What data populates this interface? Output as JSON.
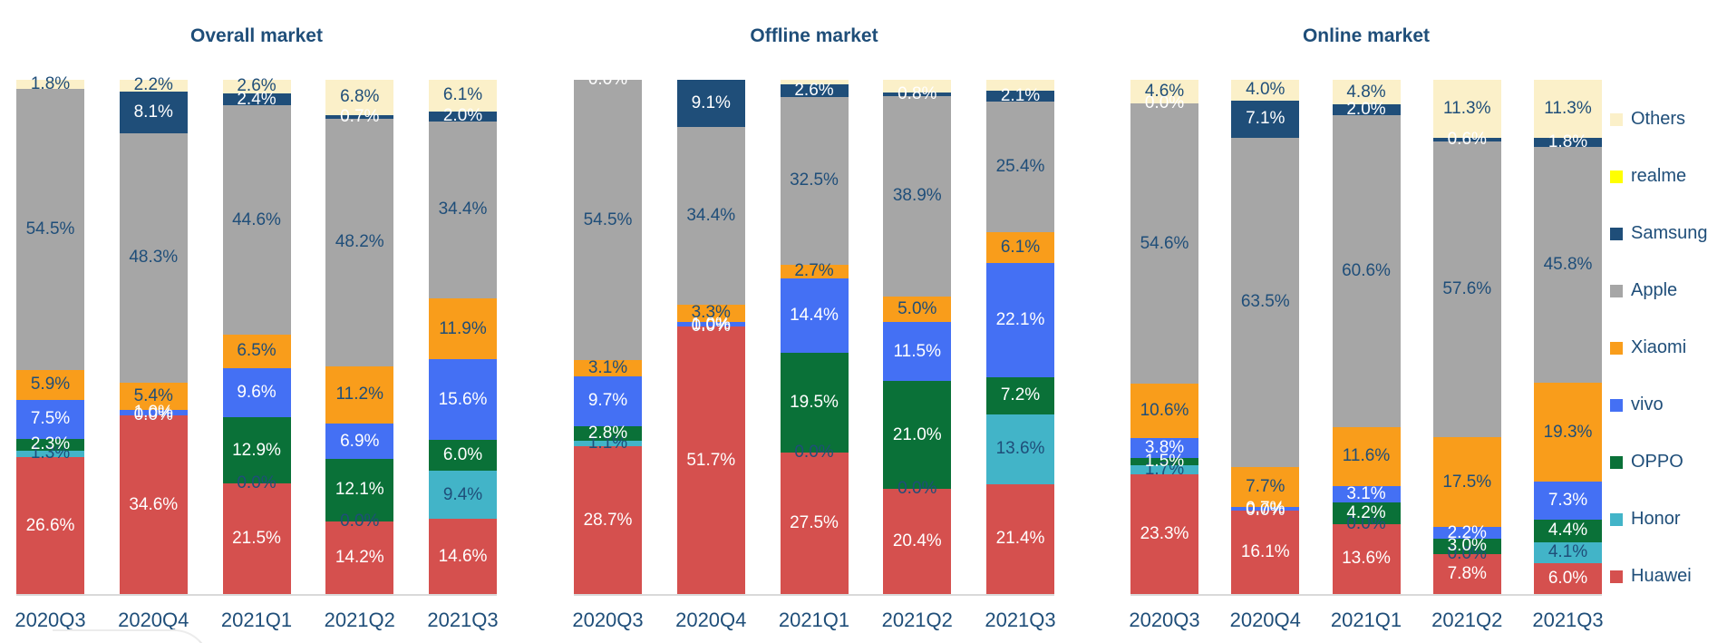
{
  "page": {
    "background": "#ffffff"
  },
  "legend": {
    "position": "right",
    "items": [
      {
        "label": "Others",
        "color": "#FBF0C9"
      },
      {
        "label": "realme",
        "color": "#FFFF00"
      },
      {
        "label": "Samsung",
        "color": "#1F4E79"
      },
      {
        "label": "Apple",
        "color": "#A6A6A6"
      },
      {
        "label": "Xiaomi",
        "color": "#F99D1B"
      },
      {
        "label": "vivo",
        "color": "#4470F4"
      },
      {
        "label": "OPPO",
        "color": "#0A7138"
      },
      {
        "label": "Honor",
        "color": "#42B4C8"
      },
      {
        "label": "Huawei",
        "color": "#D5504E"
      }
    ]
  },
  "chart_data": {
    "type": "bar",
    "subtype": "100-percent-stacked-column",
    "grid": false,
    "ylim": [
      0,
      100
    ],
    "legend_position": "right",
    "categories": [
      "2020Q3",
      "2020Q4",
      "2021Q1",
      "2021Q2",
      "2021Q3"
    ],
    "series_order_bottom_to_top": [
      "Huawei",
      "Honor",
      "OPPO",
      "vivo",
      "Xiaomi",
      "Apple",
      "Samsung",
      "realme",
      "Others"
    ],
    "series_colors": {
      "Huawei": "#D5504E",
      "Honor": "#42B4C8",
      "OPPO": "#0A7138",
      "vivo": "#4470F4",
      "Xiaomi": "#F99D1B",
      "Apple": "#A6A6A6",
      "Samsung": "#1F4E79",
      "realme": "#FFFF00",
      "Others": "#FBF0C9"
    },
    "label_text_colors": {
      "Huawei": "#FFFFFF",
      "Honor": "#1F4E79",
      "OPPO": "#FFFFFF",
      "vivo": "#FFFFFF",
      "Xiaomi": "#1F4E79",
      "Apple": "#1F4E79",
      "Samsung": "#FFFFFF",
      "realme": null,
      "Others": "#1F4E79"
    },
    "charts": [
      {
        "title": "Overall market",
        "series": [
          {
            "name": "Huawei",
            "values": [
              26.6,
              34.6,
              21.5,
              14.2,
              14.6
            ],
            "labels": [
              "26.6%",
              "34.6%",
              "21.5%",
              "14.2%",
              "14.6%"
            ]
          },
          {
            "name": "Honor",
            "values": [
              1.3,
              0.0,
              0.0,
              0.0,
              9.4
            ],
            "labels": [
              "1.3%",
              "0.0%",
              "0.0%",
              "0.0%",
              "9.4%"
            ]
          },
          {
            "name": "OPPO",
            "values": [
              2.3,
              0.0,
              12.9,
              12.1,
              6.0
            ],
            "labels": [
              "2.3%",
              "0.0%",
              "12.9%",
              "12.1%",
              "6.0%"
            ]
          },
          {
            "name": "vivo",
            "values": [
              7.5,
              1.0,
              9.6,
              6.9,
              15.6
            ],
            "labels": [
              "7.5%",
              "1.0%",
              "9.6%",
              "6.9%",
              "15.6%"
            ]
          },
          {
            "name": "Xiaomi",
            "values": [
              5.9,
              5.4,
              6.5,
              11.2,
              11.9
            ],
            "labels": [
              "5.9%",
              "5.4%",
              "6.5%",
              "11.2%",
              "11.9%"
            ]
          },
          {
            "name": "Apple",
            "values": [
              54.5,
              48.3,
              44.6,
              48.2,
              34.4
            ],
            "labels": [
              "54.5%",
              "48.3%",
              "44.6%",
              "48.2%",
              "34.4%"
            ]
          },
          {
            "name": "Samsung",
            "values": [
              0.0,
              8.1,
              2.4,
              0.7,
              2.0
            ],
            "labels": [
              null,
              "8.1%",
              "2.4%",
              "0.7%",
              "2.0%"
            ]
          },
          {
            "name": "realme",
            "values": [
              0.0,
              0.0,
              0.0,
              0.0,
              0.0
            ],
            "labels": [
              null,
              null,
              null,
              null,
              null
            ]
          },
          {
            "name": "Others",
            "values": [
              1.8,
              2.2,
              2.6,
              6.8,
              6.1
            ],
            "labels": [
              "1.8%",
              "2.2%",
              "2.6%",
              "6.8%",
              "6.1%"
            ]
          }
        ]
      },
      {
        "title": "Offline market",
        "series": [
          {
            "name": "Huawei",
            "values": [
              28.7,
              51.7,
              27.5,
              20.4,
              21.4
            ],
            "labels": [
              "28.7%",
              "51.7%",
              "27.5%",
              "20.4%",
              "21.4%"
            ]
          },
          {
            "name": "Honor",
            "values": [
              1.1,
              0.0,
              0.0,
              0.0,
              13.6
            ],
            "labels": [
              "1.1%",
              "0.0%",
              "0.0%",
              "0.0%",
              "13.6%"
            ]
          },
          {
            "name": "OPPO",
            "values": [
              2.8,
              0.0,
              19.5,
              21.0,
              7.2
            ],
            "labels": [
              "2.8%",
              "0.0%",
              "19.5%",
              "21.0%",
              "7.2%"
            ]
          },
          {
            "name": "vivo",
            "values": [
              9.7,
              1.0,
              14.4,
              11.5,
              22.1
            ],
            "labels": [
              "9.7%",
              "1.0%",
              "14.4%",
              "11.5%",
              "22.1%"
            ]
          },
          {
            "name": "Xiaomi",
            "values": [
              3.1,
              3.3,
              2.7,
              5.0,
              6.1
            ],
            "labels": [
              "3.1%",
              "3.3%",
              "2.7%",
              "5.0%",
              "6.1%"
            ]
          },
          {
            "name": "Apple",
            "values": [
              54.5,
              34.4,
              32.5,
              38.9,
              25.4
            ],
            "labels": [
              "54.5%",
              "34.4%",
              "32.5%",
              "38.9%",
              "25.4%"
            ]
          },
          {
            "name": "Samsung",
            "values": [
              0.0,
              9.1,
              2.6,
              0.8,
              2.1
            ],
            "labels": [
              "0.0%",
              "9.1%",
              "2.6%",
              "0.8%",
              "2.1%"
            ]
          },
          {
            "name": "realme",
            "values": [
              0.0,
              0.0,
              0.0,
              0.0,
              0.0
            ],
            "labels": [
              null,
              null,
              null,
              null,
              null
            ]
          },
          {
            "name": "Others",
            "values": [
              0.0,
              0.0,
              0.8,
              2.4,
              2.1
            ],
            "labels": [
              null,
              null,
              null,
              null,
              null
            ]
          }
        ]
      },
      {
        "title": "Online market",
        "series": [
          {
            "name": "Huawei",
            "values": [
              23.3,
              16.1,
              13.6,
              7.8,
              6.0
            ],
            "labels": [
              "23.3%",
              "16.1%",
              "13.6%",
              "7.8%",
              "6.0%"
            ]
          },
          {
            "name": "Honor",
            "values": [
              1.7,
              0.0,
              0.0,
              0.0,
              4.1
            ],
            "labels": [
              "1.7%",
              "0.0%",
              "0.0%",
              "0.0%",
              "4.1%"
            ]
          },
          {
            "name": "OPPO",
            "values": [
              1.5,
              0.0,
              4.2,
              3.0,
              4.4
            ],
            "labels": [
              "1.5%",
              "0.0%",
              "4.2%",
              "3.0%",
              "4.4%"
            ]
          },
          {
            "name": "vivo",
            "values": [
              3.8,
              0.7,
              3.1,
              2.2,
              7.3
            ],
            "labels": [
              "3.8%",
              "0.7%",
              "3.1%",
              "2.2%",
              "7.3%"
            ]
          },
          {
            "name": "Xiaomi",
            "values": [
              10.6,
              7.7,
              11.6,
              17.5,
              19.3
            ],
            "labels": [
              "10.6%",
              "7.7%",
              "11.6%",
              "17.5%",
              "19.3%"
            ]
          },
          {
            "name": "Apple",
            "values": [
              54.6,
              63.5,
              60.6,
              57.6,
              45.8
            ],
            "labels": [
              "54.6%",
              "63.5%",
              "60.6%",
              "57.6%",
              "45.8%"
            ]
          },
          {
            "name": "Samsung",
            "values": [
              0.0,
              7.1,
              2.0,
              0.6,
              1.8
            ],
            "labels": [
              "0.0%",
              "7.1%",
              "2.0%",
              "0.6%",
              "1.8%"
            ]
          },
          {
            "name": "realme",
            "values": [
              0.0,
              0.0,
              0.0,
              0.0,
              0.0
            ],
            "labels": [
              null,
              null,
              null,
              null,
              null
            ]
          },
          {
            "name": "Others",
            "values": [
              4.6,
              4.0,
              4.8,
              11.3,
              11.3
            ],
            "labels": [
              "4.6%",
              "4.0%",
              "4.8%",
              "11.3%",
              "11.3%"
            ]
          }
        ]
      }
    ]
  }
}
